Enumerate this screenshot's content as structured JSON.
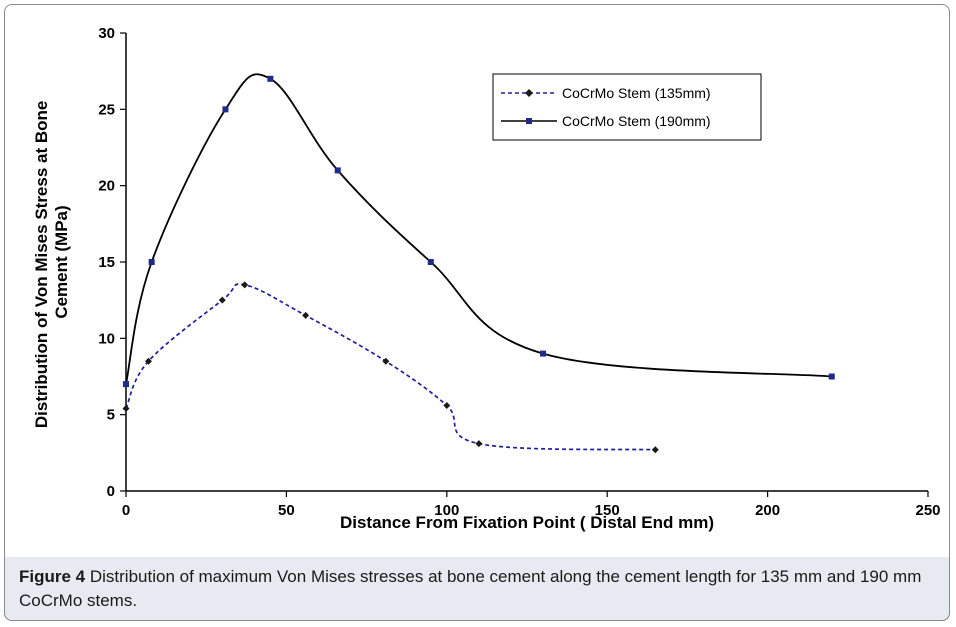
{
  "caption": {
    "label": "Figure 4",
    "text": "Distribution of maximum Von Mises stresses at bone cement along the cement length for 135 mm and 190 mm CoCrMo stems."
  },
  "chart_data": {
    "type": "line",
    "title": "",
    "xlabel": "Distance From Fixation Point ( Distal End mm)",
    "ylabel": "Distribution of Von Mises Stress at Bone Cement (MPa)",
    "ylabel_lines": [
      "Distribution of Von Mises Stress at Bone",
      "Cement (MPa)"
    ],
    "xlim": [
      0,
      250
    ],
    "ylim": [
      0,
      30
    ],
    "xticks": [
      0,
      50,
      100,
      150,
      200,
      250
    ],
    "yticks": [
      0,
      5,
      10,
      15,
      20,
      25,
      30
    ],
    "grid": false,
    "legend_position": "top-right",
    "series": [
      {
        "name": "CoCrMo Stem (135mm)",
        "color": "#1f1fa0",
        "line_style": "dashed",
        "marker": "diamond",
        "marker_color": "#1a1a1a",
        "x": [
          0,
          7,
          30,
          37,
          56,
          81,
          100,
          110,
          165
        ],
        "y": [
          5.4,
          8.5,
          12.5,
          13.5,
          11.5,
          8.5,
          5.6,
          3.1,
          2.7
        ]
      },
      {
        "name": "CoCrMo Stem (190mm)",
        "color": "#000000",
        "line_style": "solid",
        "marker": "square",
        "marker_color": "#1f2a8a",
        "x": [
          0,
          8,
          31,
          45,
          66,
          95,
          130,
          220
        ],
        "y": [
          7,
          15,
          25,
          27,
          21,
          15,
          9,
          7.5
        ]
      }
    ]
  }
}
